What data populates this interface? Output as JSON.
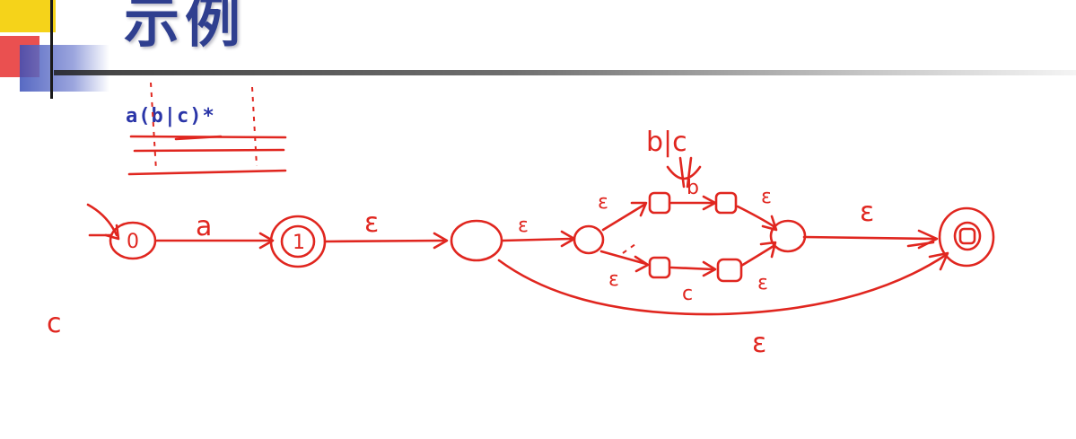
{
  "slide": {
    "title": "示例",
    "regex": "a(b|c)*"
  },
  "diagram": {
    "top_label": "b|c",
    "aside_label": "c",
    "states": [
      {
        "id": "s0",
        "label": "0"
      },
      {
        "id": "s1",
        "label": "1"
      },
      {
        "id": "s2",
        "label": ""
      },
      {
        "id": "s3",
        "label": ""
      },
      {
        "id": "s4",
        "label": ""
      },
      {
        "id": "s5",
        "label": ""
      },
      {
        "id": "s6",
        "label": ""
      },
      {
        "id": "s7",
        "label": ""
      },
      {
        "id": "s8",
        "label": ""
      },
      {
        "id": "s9",
        "label": ""
      }
    ],
    "transitions": [
      {
        "id": "t-s0-s1",
        "label": "a"
      },
      {
        "id": "t-s1-s2",
        "label": "ε"
      },
      {
        "id": "t-s2-s3",
        "label": "ε"
      },
      {
        "id": "t-s3-s4",
        "label": "ε"
      },
      {
        "id": "t-s4-s5",
        "label": "b"
      },
      {
        "id": "t-s5-s8",
        "label": "ε"
      },
      {
        "id": "t-s3-s6",
        "label": "ε"
      },
      {
        "id": "t-s6-s7",
        "label": "c"
      },
      {
        "id": "t-s7-s8",
        "label": "ε"
      },
      {
        "id": "t-s8-s9",
        "label": "ε"
      },
      {
        "id": "t-s2-s9",
        "label": "ε"
      }
    ]
  }
}
